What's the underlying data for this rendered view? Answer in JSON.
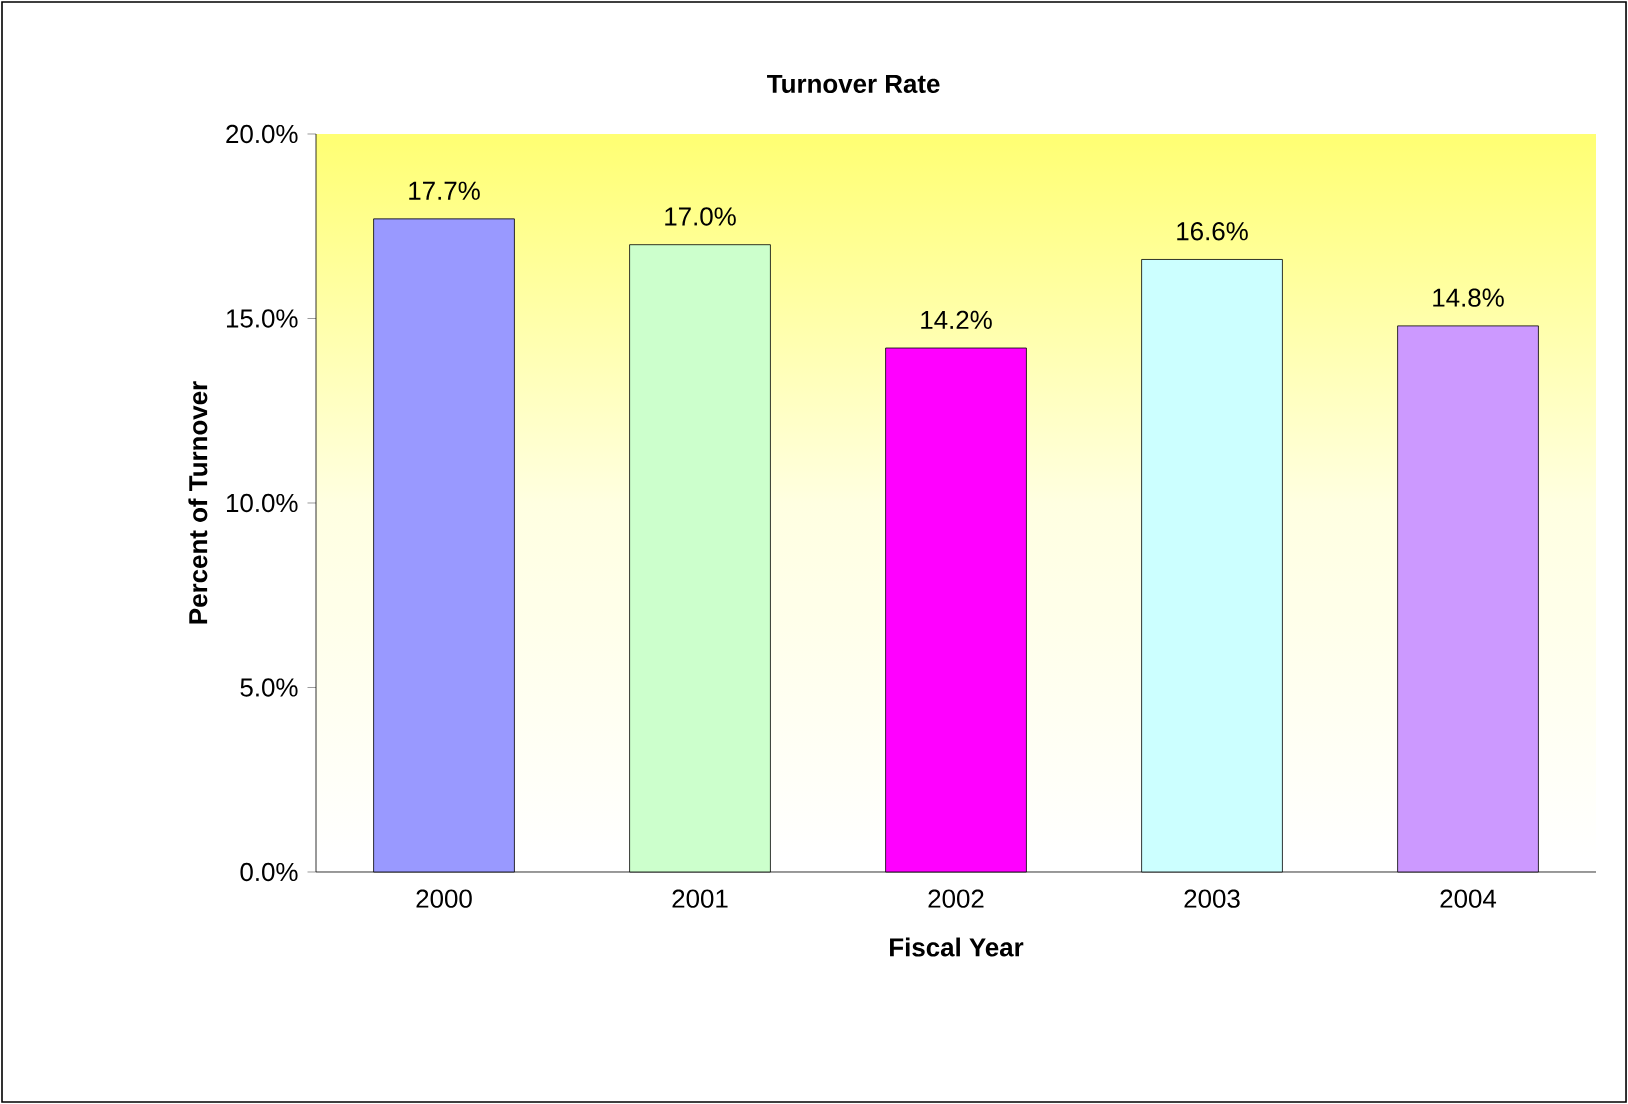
{
  "chart_data": {
    "type": "bar",
    "title": "Turnover Rate",
    "xlabel": "Fiscal Year",
    "ylabel": "Percent of Turnover",
    "categories": [
      "2000",
      "2001",
      "2002",
      "2003",
      "2004"
    ],
    "values": [
      17.7,
      17.0,
      14.2,
      16.6,
      14.8
    ],
    "colors": [
      "#9999ff",
      "#ccffcc",
      "#ff00ff",
      "#ccffff",
      "#cc99ff"
    ],
    "value_labels": [
      "17.7%",
      "17.0%",
      "14.2%",
      "16.6%",
      "14.8%"
    ],
    "ylim": [
      0,
      20
    ],
    "yticks": [
      {
        "value": 0,
        "label": "0.0%"
      },
      {
        "value": 5,
        "label": "5.0%"
      },
      {
        "value": 10,
        "label": "10.0%"
      },
      {
        "value": 15,
        "label": "15.0%"
      },
      {
        "value": 20,
        "label": "20.0%"
      }
    ]
  }
}
